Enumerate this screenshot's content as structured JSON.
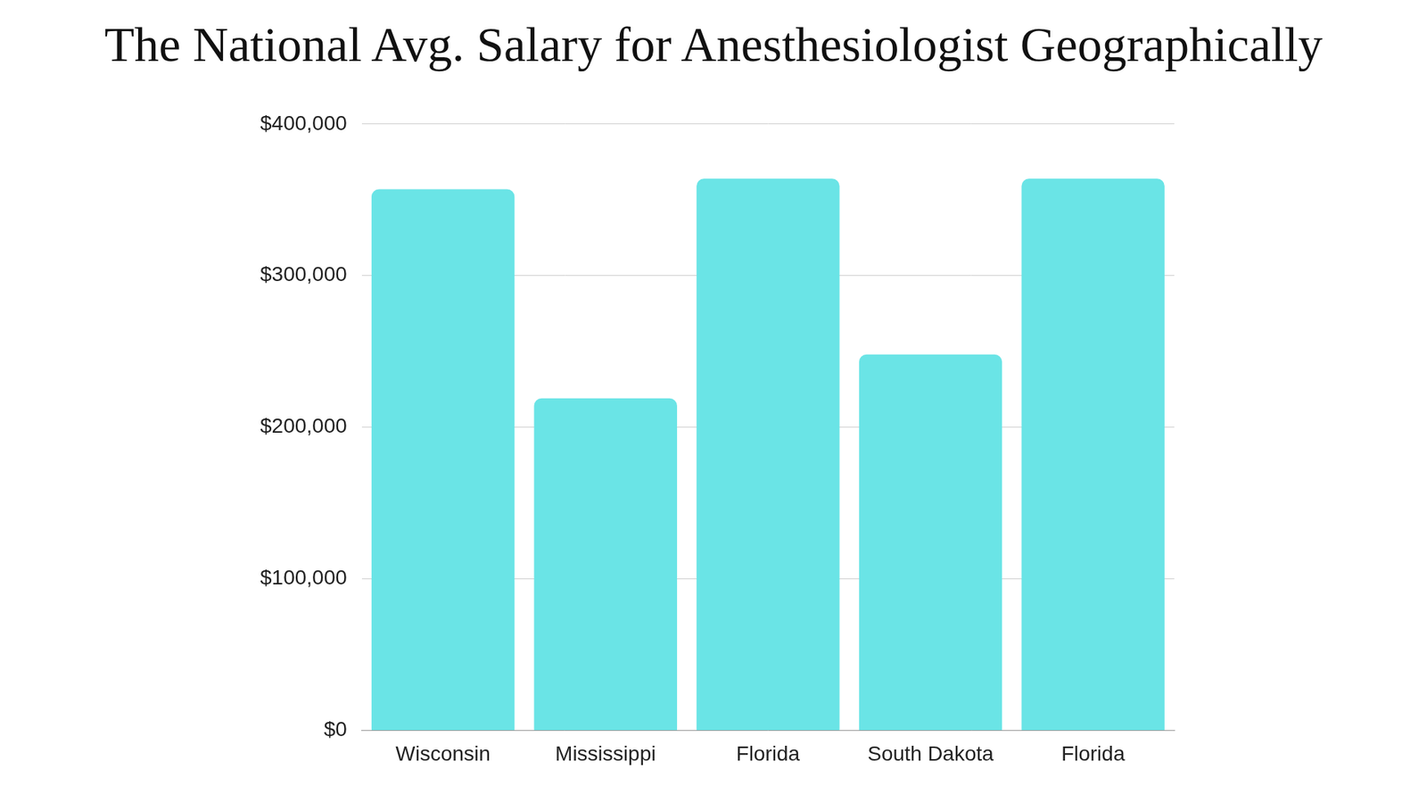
{
  "chart_data": {
    "type": "bar",
    "title": "The National Avg. Salary for Anesthesiologist Geographically",
    "categories": [
      "Wisconsin",
      "Mississippi",
      "Florida",
      "South Dakota",
      "Florida"
    ],
    "values": [
      357000,
      219000,
      364000,
      248000,
      364000
    ],
    "color": "#6ae4e6",
    "ylim": [
      0,
      400000
    ],
    "yticks": [
      {
        "value": 0,
        "label": "$0"
      },
      {
        "value": 100000,
        "label": "$100,000"
      },
      {
        "value": 200000,
        "label": "$200,000"
      },
      {
        "value": 300000,
        "label": "$300,000"
      },
      {
        "value": 400000,
        "label": "$400,000"
      }
    ],
    "grid": true
  }
}
